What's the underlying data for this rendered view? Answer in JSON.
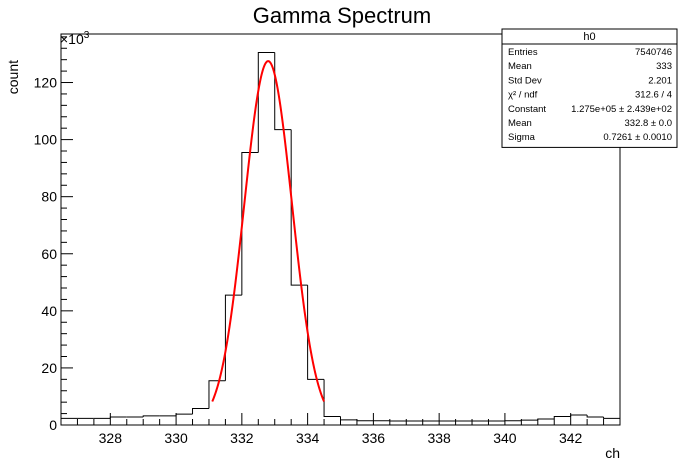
{
  "chart_data": {
    "type": "bar",
    "title": "Gamma Spectrum",
    "xlabel": "ch",
    "ylabel": "count",
    "y_multiplier": "×10",
    "y_multiplier_exp": "3",
    "xlim": [
      326.5,
      343.5
    ],
    "ylim": [
      0,
      137
    ],
    "x_ticks": [
      328,
      330,
      332,
      334,
      336,
      338,
      340,
      342
    ],
    "y_ticks": [
      0,
      20,
      40,
      60,
      80,
      100,
      120
    ],
    "bin_width": 0.5,
    "bins": {
      "edges_start": 326.5,
      "values": [
        2.3,
        2.3,
        2.3,
        2.8,
        2.8,
        3.2,
        3.2,
        3.8,
        5.8,
        15.5,
        45.5,
        95.5,
        130.5,
        103.5,
        49.0,
        16.0,
        3.0,
        1.8,
        1.5,
        1.5,
        1.4,
        1.4,
        1.4,
        1.4,
        1.4,
        1.4,
        1.4,
        1.5,
        1.7,
        2.1,
        3.0,
        3.5,
        2.8,
        2.3
      ]
    },
    "series": [
      {
        "name": "h0",
        "kind": "histogram",
        "color": "#000000"
      },
      {
        "name": "gaus",
        "kind": "fit",
        "color": "#ff0000",
        "constant": 127.5,
        "mean": 332.8,
        "sigma": 0.7261,
        "range": [
          331.1,
          334.5
        ]
      }
    ]
  },
  "stats": {
    "title": "h0",
    "rows": [
      {
        "label": "Entries",
        "value": "7540746"
      },
      {
        "label": "Mean",
        "value": "333"
      },
      {
        "label": "Std Dev",
        "value": "2.201"
      },
      {
        "label": "χ² / ndf",
        "value": "312.6 / 4"
      },
      {
        "label": "Constant",
        "value": "1.275e+05 ± 2.439e+02"
      },
      {
        "label": "Mean",
        "value": "332.8 ± 0.0"
      },
      {
        "label": "Sigma",
        "value": "0.7261 ± 0.0010"
      }
    ]
  }
}
